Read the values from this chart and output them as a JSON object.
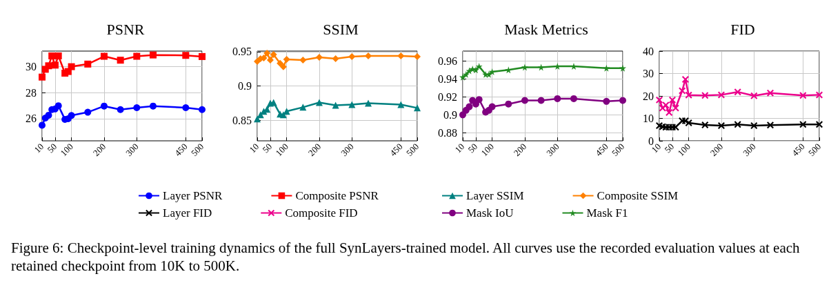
{
  "chart_data": [
    {
      "type": "line",
      "title": "PSNR",
      "x": [
        10,
        20,
        30,
        40,
        50,
        60,
        80,
        90,
        100,
        150,
        200,
        250,
        300,
        350,
        450,
        500
      ],
      "xlim": [
        10,
        500
      ],
      "xticks": [
        10,
        50,
        100,
        200,
        300,
        450,
        500
      ],
      "ylim": [
        24.3,
        31.2
      ],
      "yticks": [
        26,
        28,
        30
      ],
      "grid": true,
      "legend": "bottom",
      "annotations": [
        "Figure 6: Checkpoint-level training dynamics of the full SynLayers-trained model. All curves use the recorded evaluation values at each retained checkpoint from 10K to 500K."
      ],
      "series": [
        {
          "name": "Layer PSNR",
          "color": "#0000ff",
          "marker": "circle",
          "values": [
            25.5,
            26.05,
            26.27,
            26.7,
            26.75,
            27.0,
            25.95,
            26.0,
            26.25,
            26.5,
            26.97,
            26.7,
            26.85,
            26.97,
            26.85,
            26.7
          ]
        },
        {
          "name": "Composite PSNR",
          "color": "#ff0000",
          "marker": "square",
          "values": [
            29.2,
            29.8,
            30.07,
            30.83,
            30.12,
            30.83,
            29.5,
            29.63,
            30.0,
            30.2,
            30.8,
            30.5,
            30.8,
            30.9,
            30.87,
            30.78
          ]
        }
      ]
    },
    {
      "type": "line",
      "title": "SSIM",
      "x": [
        10,
        20,
        30,
        40,
        50,
        60,
        80,
        90,
        100,
        150,
        200,
        250,
        300,
        350,
        450,
        500
      ],
      "xlim": [
        10,
        500
      ],
      "xticks": [
        10,
        50,
        100,
        200,
        300,
        450,
        500
      ],
      "ylim": [
        0.82,
        0.951
      ],
      "yticks": [
        0.85,
        0.9,
        0.95
      ],
      "grid": true,
      "legend": "bottom",
      "series": [
        {
          "name": "Layer SSIM",
          "color": "#008080",
          "marker": "triangle",
          "values": [
            0.852,
            0.858,
            0.863,
            0.866,
            0.875,
            0.876,
            0.859,
            0.858,
            0.863,
            0.869,
            0.876,
            0.872,
            0.873,
            0.875,
            0.873,
            0.868
          ]
        },
        {
          "name": "Composite SSIM",
          "color": "#ff8000",
          "marker": "diamond",
          "values": [
            0.936,
            0.94,
            0.941,
            0.948,
            0.938,
            0.946,
            0.933,
            0.928,
            0.939,
            0.938,
            0.942,
            0.94,
            0.943,
            0.944,
            0.944,
            0.943
          ]
        }
      ]
    },
    {
      "type": "line",
      "title": "Mask Metrics",
      "x": [
        10,
        20,
        30,
        40,
        50,
        60,
        80,
        90,
        100,
        150,
        200,
        250,
        300,
        350,
        450,
        500
      ],
      "xlim": [
        10,
        500
      ],
      "xticks": [
        10,
        50,
        100,
        200,
        300,
        450,
        500
      ],
      "ylim": [
        0.871,
        0.971
      ],
      "yticks": [
        0.88,
        0.9,
        0.92,
        0.94,
        0.96
      ],
      "grid": true,
      "legend": "bottom",
      "series": [
        {
          "name": "Mask IoU",
          "color": "#800080",
          "marker": "circle",
          "values": [
            0.9,
            0.905,
            0.909,
            0.916,
            0.912,
            0.917,
            0.903,
            0.905,
            0.909,
            0.912,
            0.916,
            0.916,
            0.918,
            0.918,
            0.915,
            0.916
          ]
        },
        {
          "name": "Mask F1",
          "color": "#228b22",
          "marker": "star",
          "values": [
            0.942,
            0.945,
            0.949,
            0.951,
            0.95,
            0.954,
            0.945,
            0.945,
            0.948,
            0.95,
            0.953,
            0.953,
            0.954,
            0.954,
            0.952,
            0.952
          ]
        }
      ]
    },
    {
      "type": "line",
      "title": "FID",
      "x": [
        10,
        20,
        30,
        40,
        50,
        60,
        80,
        90,
        100,
        150,
        200,
        250,
        300,
        350,
        450,
        500
      ],
      "xlim": [
        10,
        500
      ],
      "xticks": [
        10,
        50,
        100,
        200,
        300,
        450,
        500
      ],
      "ylim": [
        0,
        40
      ],
      "yticks": [
        0,
        10,
        20,
        30,
        40
      ],
      "grid": true,
      "legend": "bottom",
      "series": [
        {
          "name": "Layer FID",
          "color": "#000000",
          "marker": "cross",
          "values": [
            6.8,
            6.3,
            6.1,
            6.1,
            6.1,
            6.1,
            8.9,
            8.9,
            8.0,
            7.1,
            6.8,
            7.3,
            6.8,
            7.0,
            7.3,
            7.3
          ]
        },
        {
          "name": "Composite FID",
          "color": "#ec008c",
          "marker": "cross",
          "values": [
            18.2,
            14.6,
            15.9,
            12.6,
            18.2,
            14.6,
            22.3,
            27.4,
            20.4,
            20.2,
            20.5,
            21.8,
            20.1,
            21.3,
            20.2,
            20.5
          ]
        }
      ]
    }
  ]
}
